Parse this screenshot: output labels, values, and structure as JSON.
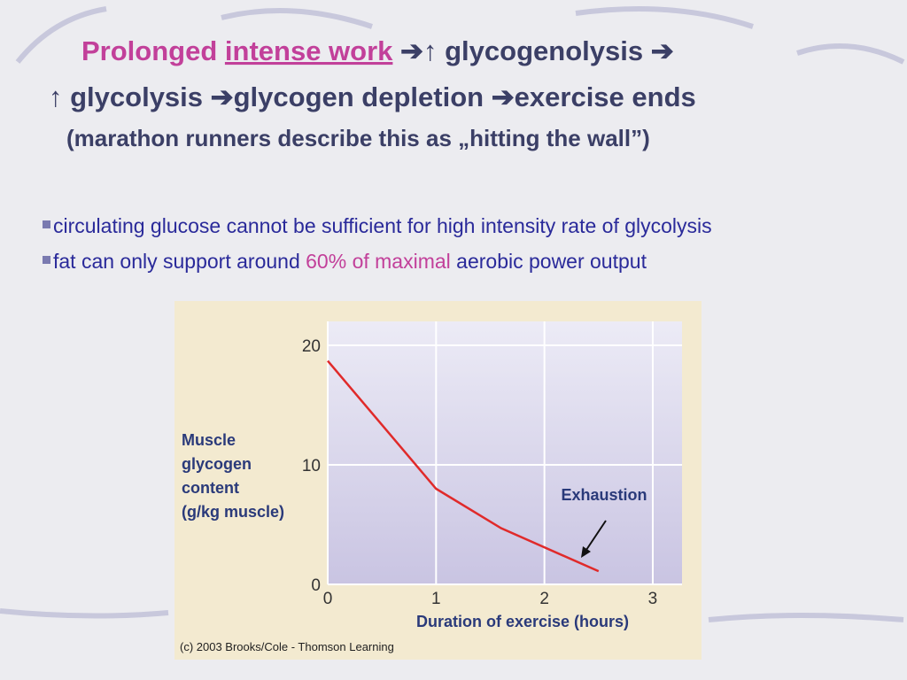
{
  "title": {
    "part1": "Prolonged",
    "part2": "intense work",
    "part3": "➔↑ glycogenolysis ➔",
    "line2": "↑ glycolysis ➔glycogen depletion ➔exercise ends",
    "line3": "(marathon runners describe this as „hitting the wall”)"
  },
  "bullets": [
    [
      "circulating glucose cannot be sufficient for high intensity rate of glycolysis"
    ],
    [
      "fat can only support around",
      "60% of maximal",
      "aerobic power output"
    ]
  ],
  "chart_data": {
    "type": "line",
    "ylabel": [
      "Muscle",
      "glycogen",
      "content",
      "(g/kg muscle)"
    ],
    "xlabel": "Duration of exercise (hours)",
    "annotation": "Exhaustion",
    "credit": "(c) 2003 Brooks/Cole - Thomson Learning",
    "x": [
      0,
      1,
      1.6,
      2.5
    ],
    "series": [
      {
        "name": "Muscle glycogen",
        "color": "#e02a2a",
        "values": [
          18.7,
          8,
          4.7,
          1.1
        ]
      }
    ],
    "xlim": [
      0,
      3.27
    ],
    "xticks": [
      0,
      1,
      2,
      3
    ],
    "ylim": [
      0,
      22
    ],
    "yticks": [
      0,
      10,
      20
    ],
    "grid": true
  }
}
